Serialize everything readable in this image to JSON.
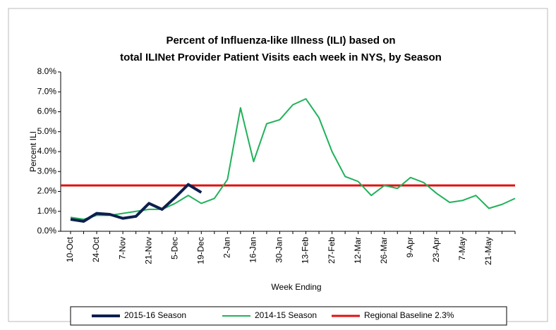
{
  "chart_data": {
    "type": "line",
    "title": [
      "Percent of Influenza-like Illness (ILI) based on",
      "total ILINet Provider Patient Visits each week in NYS, by Season"
    ],
    "x_label": "Week Ending",
    "y_label": "Percent ILI",
    "categories": [
      "10-Oct",
      null,
      "24-Oct",
      null,
      "7-Nov",
      null,
      "21-Nov",
      null,
      "5-Dec",
      null,
      "19-Dec",
      null,
      "2-Jan",
      null,
      "16-Jan",
      null,
      "30-Jan",
      null,
      "13-Feb",
      null,
      "27-Feb",
      null,
      "12-Mar",
      null,
      "26-Mar",
      null,
      "9-Apr",
      null,
      "23-Apr",
      null,
      "7-May",
      null,
      "21-May",
      null,
      null
    ],
    "series": [
      {
        "name": "2015-16 Season",
        "color": "#0d1f4e",
        "width": 4,
        "values": [
          0.6,
          0.5,
          0.9,
          0.85,
          0.65,
          0.75,
          1.4,
          1.1,
          1.7,
          2.35,
          1.95,
          null,
          null,
          null,
          null,
          null,
          null,
          null,
          null,
          null,
          null,
          null,
          null,
          null,
          null,
          null,
          null,
          null,
          null,
          null,
          null,
          null,
          null,
          null,
          null
        ]
      },
      {
        "name": "2014-15 Season",
        "color": "#21b15a",
        "width": 2,
        "values": [
          0.7,
          0.6,
          0.8,
          0.8,
          0.9,
          1.0,
          1.1,
          1.1,
          1.4,
          1.8,
          1.4,
          1.65,
          2.6,
          6.2,
          3.5,
          5.4,
          5.6,
          6.35,
          6.65,
          5.7,
          4.0,
          2.75,
          2.5,
          1.8,
          2.3,
          2.15,
          2.7,
          2.45,
          1.9,
          1.45,
          1.55,
          1.8,
          1.15,
          1.35,
          1.65
        ]
      }
    ],
    "baseline": {
      "name": "Regional Baseline 2.3%",
      "value": 2.3,
      "color": "#e01010"
    },
    "ylim": [
      0,
      8
    ],
    "yticks": [
      {
        "value": 0,
        "label": "0.0%"
      },
      {
        "value": 1,
        "label": "1.0%"
      },
      {
        "value": 2,
        "label": "2.0%"
      },
      {
        "value": 3,
        "label": "3.0%"
      },
      {
        "value": 4,
        "label": "4.0%"
      },
      {
        "value": 5,
        "label": "5.0%"
      },
      {
        "value": 6,
        "label": "6.0%"
      },
      {
        "value": 7,
        "label": "7.0%"
      },
      {
        "value": 8,
        "label": "8.0%"
      }
    ]
  }
}
